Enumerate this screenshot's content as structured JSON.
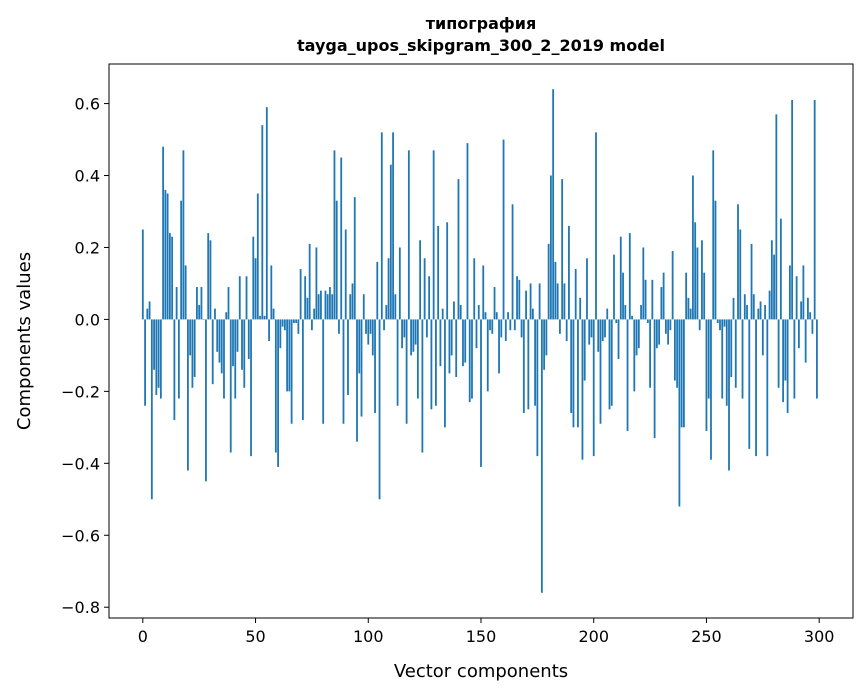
{
  "chart_data": {
    "type": "bar",
    "title": [
      "типография",
      "tayga_upos_skipgram_300_2_2019 model"
    ],
    "xlabel": "Vector components",
    "ylabel": "Components values",
    "xlim": [
      -15,
      315
    ],
    "ylim": [
      -0.83,
      0.71
    ],
    "xticks": [
      0,
      50,
      100,
      150,
      200,
      250,
      300
    ],
    "yticks": [
      -0.8,
      -0.6,
      -0.4,
      -0.2,
      0.0,
      0.2,
      0.4,
      0.6
    ],
    "ytick_labels": [
      "−0.8",
      "−0.6",
      "−0.4",
      "−0.2",
      "0.0",
      "0.2",
      "0.4",
      "0.6"
    ],
    "grid": false,
    "color": "#1f77b4",
    "values": [
      0.25,
      -0.24,
      0.03,
      0.05,
      -0.5,
      -0.14,
      -0.21,
      -0.19,
      -0.22,
      0.48,
      0.36,
      0.35,
      0.24,
      0.23,
      -0.28,
      0.09,
      -0.22,
      0.33,
      0.47,
      0.15,
      -0.42,
      -0.1,
      -0.19,
      -0.16,
      0.09,
      0.04,
      0.09,
      0.0,
      -0.45,
      0.24,
      0.22,
      -0.18,
      0.03,
      -0.09,
      -0.12,
      -0.15,
      -0.22,
      0.02,
      0.09,
      -0.37,
      -0.13,
      -0.22,
      -0.09,
      0.12,
      -0.14,
      -0.19,
      0.12,
      -0.11,
      -0.38,
      0.23,
      0.17,
      0.35,
      0.01,
      0.54,
      0.01,
      0.59,
      -0.06,
      0.15,
      0.03,
      -0.37,
      -0.41,
      -0.08,
      -0.02,
      -0.03,
      -0.2,
      -0.2,
      -0.29,
      -0.01,
      -0.01,
      -0.04,
      0.14,
      -0.28,
      0.12,
      0.06,
      0.21,
      -0.03,
      0.03,
      0.2,
      0.07,
      0.08,
      -0.29,
      0.08,
      0.07,
      0.09,
      0.07,
      0.47,
      0.33,
      -0.04,
      0.45,
      -0.29,
      0.25,
      -0.21,
      0.07,
      0.1,
      0.34,
      -0.34,
      -0.15,
      -0.27,
      0.07,
      -0.04,
      -0.07,
      -0.04,
      -0.1,
      -0.26,
      0.16,
      -0.5,
      0.52,
      -0.03,
      0.04,
      0.17,
      0.43,
      0.52,
      0.07,
      -0.24,
      0.2,
      -0.08,
      -0.05,
      -0.29,
      0.47,
      -0.1,
      -0.09,
      -0.07,
      -0.22,
      0.22,
      -0.37,
      0.17,
      -0.05,
      0.12,
      -0.25,
      0.47,
      -0.24,
      0.26,
      -0.13,
      0.03,
      -0.3,
      0.27,
      -0.15,
      -0.1,
      0.05,
      -0.16,
      0.39,
      0.04,
      -0.13,
      -0.12,
      0.49,
      -0.23,
      -0.22,
      0.17,
      -0.08,
      0.04,
      -0.41,
      0.15,
      0.02,
      -0.2,
      -0.03,
      -0.04,
      0.09,
      0.02,
      -0.15,
      -0.05,
      0.5,
      -0.06,
      0.02,
      -0.03,
      0.32,
      -0.03,
      0.12,
      0.11,
      -0.05,
      -0.26,
      0.08,
      -0.25,
      0.1,
      0.03,
      -0.24,
      -0.38,
      0.1,
      -0.76,
      -0.14,
      -0.1,
      0.21,
      0.4,
      0.64,
      0.16,
      0.1,
      -0.04,
      0.39,
      0.1,
      -0.06,
      0.26,
      -0.26,
      -0.3,
      0.14,
      -0.3,
      0.06,
      -0.39,
      -0.17,
      0.17,
      -0.07,
      -0.05,
      -0.38,
      0.52,
      -0.09,
      -0.29,
      -0.06,
      -0.05,
      0.03,
      -0.25,
      -0.24,
      0.18,
      -0.01,
      -0.11,
      0.23,
      0.13,
      0.04,
      -0.31,
      0.24,
      0.01,
      -0.2,
      -0.1,
      -0.08,
      0.04,
      0.2,
      0.11,
      -0.01,
      -0.19,
      0.11,
      -0.33,
      -0.08,
      -0.07,
      0.09,
      0.13,
      -0.04,
      -0.07,
      -0.03,
      0.19,
      -0.17,
      -0.19,
      -0.52,
      -0.3,
      -0.3,
      0.13,
      0.06,
      0.03,
      0.4,
      0.27,
      0.2,
      -0.03,
      0.22,
      0.13,
      -0.31,
      -0.22,
      -0.39,
      0.47,
      0.33,
      -0.01,
      -0.03,
      -0.22,
      -0.02,
      -0.24,
      -0.42,
      -0.16,
      0.06,
      -0.19,
      0.32,
      0.25,
      -0.22,
      0.07,
      0.04,
      -0.36,
      0.21,
      0.07,
      -0.38,
      0.03,
      0.05,
      -0.1,
      0.04,
      -0.38,
      0.08,
      0.22,
      0.18,
      0.57,
      -0.19,
      0.28,
      -0.23,
      -0.17,
      -0.26,
      0.15,
      0.61,
      -0.22,
      0.12,
      -0.08,
      0.05,
      0.15,
      -0.12,
      0.06,
      0.02,
      -0.04,
      0.61,
      -0.22
    ]
  }
}
